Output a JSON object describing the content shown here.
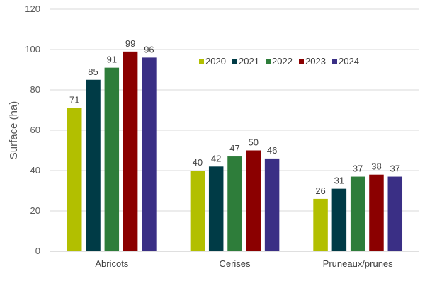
{
  "chart_data": {
    "type": "bar",
    "title": "",
    "xlabel": "",
    "ylabel": "Surface (ha)",
    "ylim": [
      0,
      120
    ],
    "yticks": [
      0,
      20,
      40,
      60,
      80,
      100,
      120
    ],
    "grid": true,
    "legend_position": "top-right",
    "categories": [
      "Abricots",
      "Cerises",
      "Pruneaux/prunes"
    ],
    "series": [
      {
        "name": "2020",
        "color": "#b2bf00",
        "values": [
          71,
          40,
          26
        ]
      },
      {
        "name": "2021",
        "color": "#003b46",
        "values": [
          85,
          42,
          31
        ]
      },
      {
        "name": "2022",
        "color": "#2e7d3a",
        "values": [
          91,
          47,
          37
        ]
      },
      {
        "name": "2023",
        "color": "#8b0000",
        "values": [
          99,
          50,
          38
        ]
      },
      {
        "name": "2024",
        "color": "#3a2f85",
        "values": [
          96,
          46,
          37
        ]
      }
    ]
  }
}
